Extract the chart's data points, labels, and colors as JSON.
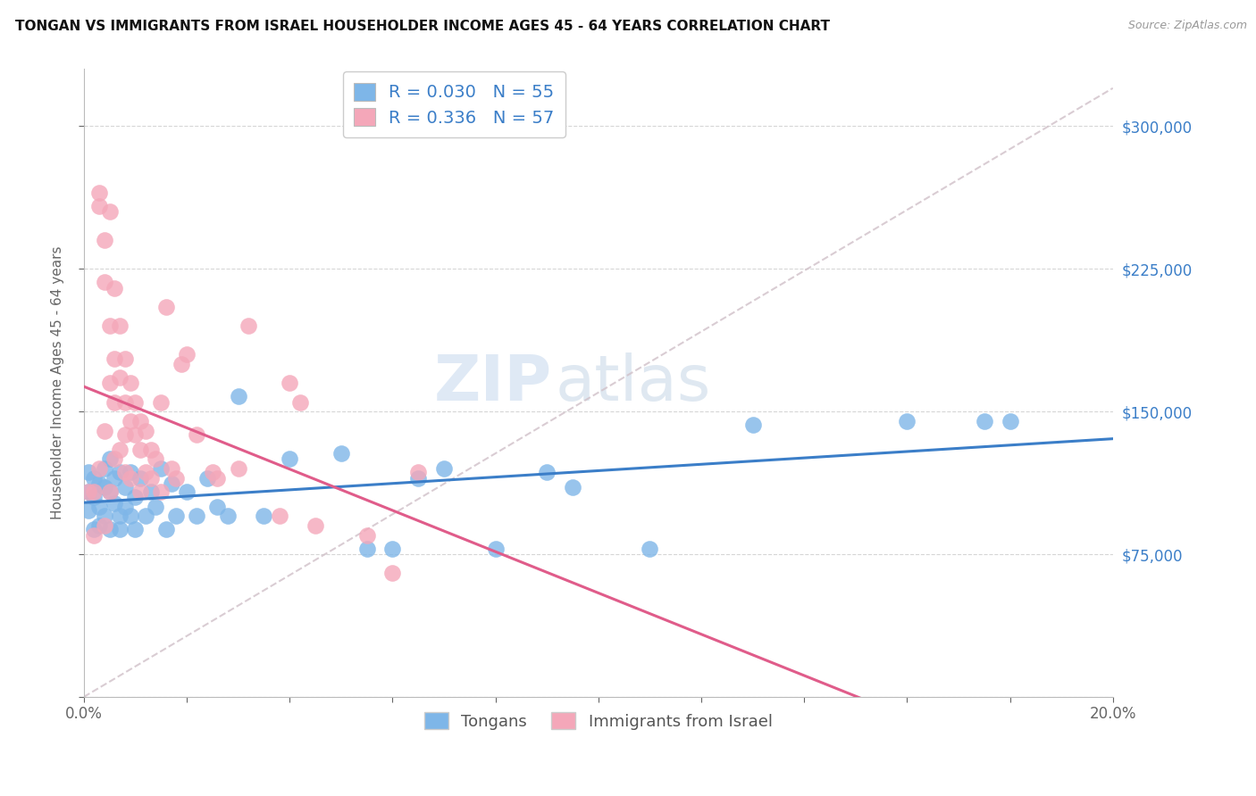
{
  "title": "TONGAN VS IMMIGRANTS FROM ISRAEL HOUSEHOLDER INCOME AGES 45 - 64 YEARS CORRELATION CHART",
  "source": "Source: ZipAtlas.com",
  "ylabel": "Householder Income Ages 45 - 64 years",
  "legend_label1": "Tongans",
  "legend_label2": "Immigrants from Israel",
  "r1": 0.03,
  "n1": 55,
  "r2": 0.336,
  "n2": 57,
  "xlim": [
    0.0,
    0.2
  ],
  "ylim": [
    0,
    330000
  ],
  "yticks": [
    0,
    75000,
    150000,
    225000,
    300000
  ],
  "ytick_labels_right": [
    "",
    "$75,000",
    "$150,000",
    "$225,000",
    "$300,000"
  ],
  "xticks": [
    0.0,
    0.02,
    0.04,
    0.06,
    0.08,
    0.1,
    0.12,
    0.14,
    0.16,
    0.18,
    0.2
  ],
  "xtick_labels": [
    "0.0%",
    "",
    "",
    "",
    "",
    "",
    "",
    "",
    "",
    "",
    "20.0%"
  ],
  "color_blue": "#7EB6E8",
  "color_pink": "#F4A7B9",
  "line_blue": "#3B7EC8",
  "line_pink": "#E05C8A",
  "line_diag_color": "#D0C0C8",
  "blue_points_x": [
    0.001,
    0.001,
    0.001,
    0.002,
    0.002,
    0.002,
    0.003,
    0.003,
    0.003,
    0.004,
    0.004,
    0.004,
    0.005,
    0.005,
    0.005,
    0.006,
    0.006,
    0.007,
    0.007,
    0.007,
    0.008,
    0.008,
    0.009,
    0.009,
    0.01,
    0.01,
    0.011,
    0.012,
    0.013,
    0.014,
    0.015,
    0.016,
    0.017,
    0.018,
    0.02,
    0.022,
    0.024,
    0.026,
    0.028,
    0.03,
    0.035,
    0.04,
    0.05,
    0.055,
    0.06,
    0.065,
    0.07,
    0.08,
    0.09,
    0.095,
    0.11,
    0.13,
    0.16,
    0.175,
    0.18
  ],
  "blue_points_y": [
    118000,
    108000,
    98000,
    115000,
    105000,
    88000,
    112000,
    100000,
    90000,
    120000,
    95000,
    110000,
    108000,
    88000,
    125000,
    102000,
    115000,
    95000,
    118000,
    88000,
    100000,
    110000,
    95000,
    118000,
    105000,
    88000,
    115000,
    95000,
    108000,
    100000,
    120000,
    88000,
    112000,
    95000,
    108000,
    95000,
    115000,
    100000,
    95000,
    158000,
    95000,
    125000,
    128000,
    78000,
    78000,
    115000,
    120000,
    78000,
    118000,
    110000,
    78000,
    143000,
    145000,
    145000,
    145000
  ],
  "pink_points_x": [
    0.001,
    0.002,
    0.002,
    0.003,
    0.003,
    0.003,
    0.004,
    0.004,
    0.004,
    0.004,
    0.005,
    0.005,
    0.005,
    0.005,
    0.006,
    0.006,
    0.006,
    0.006,
    0.007,
    0.007,
    0.007,
    0.008,
    0.008,
    0.008,
    0.008,
    0.009,
    0.009,
    0.009,
    0.01,
    0.01,
    0.011,
    0.011,
    0.011,
    0.012,
    0.012,
    0.013,
    0.013,
    0.014,
    0.015,
    0.015,
    0.016,
    0.017,
    0.018,
    0.019,
    0.02,
    0.022,
    0.025,
    0.026,
    0.03,
    0.032,
    0.038,
    0.04,
    0.042,
    0.045,
    0.055,
    0.06,
    0.065
  ],
  "pink_points_y": [
    108000,
    85000,
    108000,
    265000,
    258000,
    120000,
    240000,
    218000,
    140000,
    90000,
    255000,
    195000,
    165000,
    108000,
    215000,
    178000,
    155000,
    125000,
    195000,
    168000,
    130000,
    178000,
    155000,
    138000,
    118000,
    165000,
    145000,
    115000,
    155000,
    138000,
    145000,
    130000,
    108000,
    140000,
    118000,
    130000,
    115000,
    125000,
    155000,
    108000,
    205000,
    120000,
    115000,
    175000,
    180000,
    138000,
    118000,
    115000,
    120000,
    195000,
    95000,
    165000,
    155000,
    90000,
    85000,
    65000,
    118000
  ]
}
